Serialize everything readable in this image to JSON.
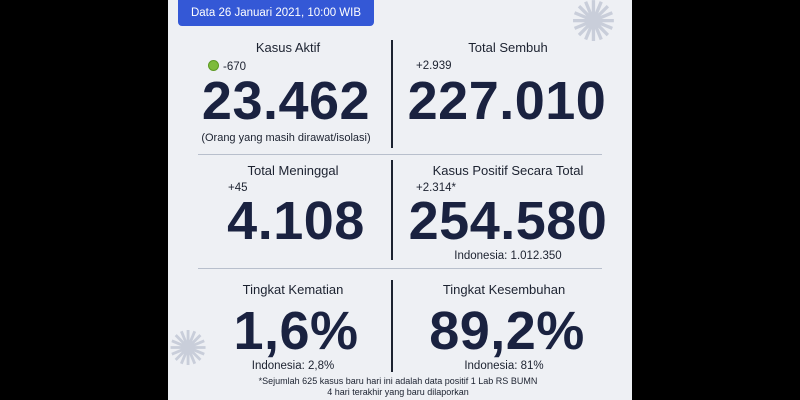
{
  "header": {
    "date": "Data 26 Januari 2021, 10:00 WIB"
  },
  "kasus_aktif": {
    "label": "Kasus Aktif",
    "delta": "-670",
    "value": "23.462",
    "note": "(Orang yang masih dirawat/isolasi)"
  },
  "total_sembuh": {
    "label": "Total Sembuh",
    "delta": "+2.939",
    "value": "227.010"
  },
  "total_meninggal": {
    "label": "Total Meninggal",
    "delta": "+45",
    "value": "4.108"
  },
  "kasus_positif": {
    "label": "Kasus Positif Secara Total",
    "delta": "+2.314*",
    "value": "254.580",
    "indonesia": "Indonesia: 1.012.350"
  },
  "tingkat_kematian": {
    "label": "Tingkat Kematian",
    "value": "1,6%",
    "indonesia": "Indonesia: 2,8%"
  },
  "tingkat_kesembuhan": {
    "label": "Tingkat Kesembuhan",
    "value": "89,2%",
    "indonesia": "Indonesia: 81%"
  },
  "footnote": {
    "line1": "*Sejumlah 625 kasus baru hari ini adalah data positif 1 Lab RS BUMN",
    "line2": "4 hari terakhir yang baru dilaporkan"
  },
  "colors": {
    "header_blue": "#3458d6",
    "number_navy": "#1a2240",
    "background": "#eef0f4",
    "indicator_green": "#7dbb3a"
  }
}
